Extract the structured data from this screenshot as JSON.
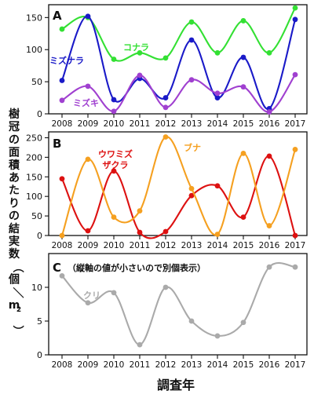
{
  "figure": {
    "ylabel": "樹冠の面積あたりの結実数（個／m2）",
    "xlabel": "調査年"
  },
  "chart_data": [
    {
      "panel_label": "A",
      "type": "line",
      "x": [
        2008,
        2009,
        2010,
        2011,
        2012,
        2013,
        2014,
        2015,
        2016,
        2017
      ],
      "ylim": [
        0,
        170
      ],
      "yticks": [
        0,
        50,
        100,
        150
      ],
      "grid": false,
      "series": [
        {
          "name": "コナラ",
          "color": "#33e033",
          "values": [
            132,
            150,
            85,
            95,
            87,
            143,
            95,
            145,
            95,
            165
          ]
        },
        {
          "name": "ミズナラ",
          "color": "#1a1ac8",
          "values": [
            52,
            152,
            22,
            55,
            25,
            115,
            25,
            88,
            8,
            147
          ]
        },
        {
          "name": "ミズキ",
          "color": "#a040d0",
          "values": [
            21,
            43,
            4,
            60,
            10,
            53,
            32,
            42,
            3,
            61
          ]
        }
      ]
    },
    {
      "panel_label": "B",
      "type": "line",
      "x": [
        2008,
        2009,
        2010,
        2011,
        2012,
        2013,
        2014,
        2015,
        2016,
        2017
      ],
      "ylim": [
        0,
        265
      ],
      "yticks": [
        0,
        50,
        100,
        150,
        200,
        250
      ],
      "grid": false,
      "series": [
        {
          "name": "ウワミズザクラ",
          "name_lines": [
            "ウワミズ",
            "ザクラ"
          ],
          "color": "#dd1111",
          "values": [
            145,
            12,
            165,
            8,
            10,
            102,
            127,
            47,
            203,
            0
          ]
        },
        {
          "name": "ブナ",
          "color": "#f5a020",
          "values": [
            0,
            195,
            47,
            63,
            252,
            120,
            3,
            210,
            25,
            220
          ]
        }
      ]
    },
    {
      "panel_label": "C",
      "note": "（縦軸の値が小さいので別個表示）",
      "type": "line",
      "x": [
        2008,
        2009,
        2010,
        2011,
        2012,
        2013,
        2014,
        2015,
        2016,
        2017
      ],
      "ylim": [
        0,
        15
      ],
      "yticks": [
        0,
        5,
        10
      ],
      "grid": false,
      "series": [
        {
          "name": "クリ",
          "color": "#aaaaaa",
          "values": [
            11.7,
            7.7,
            9.2,
            1.5,
            10.0,
            5.0,
            2.8,
            4.8,
            13.0,
            13.0
          ]
        }
      ]
    }
  ]
}
